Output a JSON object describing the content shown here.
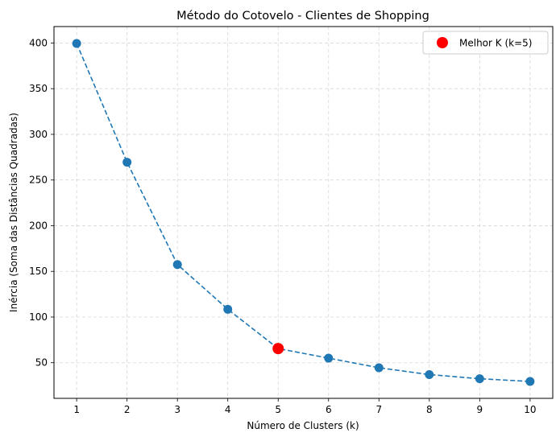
{
  "chart_data": {
    "type": "line",
    "title": "Método do Cotovelo - Clientes de Shopping",
    "xlabel": "Número de Clusters (k)",
    "ylabel": "Inércia (Soma das Distâncias Quadradas)",
    "x": [
      1,
      2,
      3,
      4,
      5,
      6,
      7,
      8,
      9,
      10
    ],
    "series": [
      {
        "values": [
          399.5,
          269.5,
          157.5,
          108.5,
          65.5,
          55,
          44.5,
          37,
          32.5,
          29.5
        ],
        "color": "#1f77b4",
        "line_style": "dashed",
        "marker": "circle"
      }
    ],
    "highlight": {
      "name": "Melhor K (k=5)",
      "x": 5,
      "y": 65.5,
      "color": "#ff0000"
    },
    "xticks": [
      1,
      2,
      3,
      4,
      5,
      6,
      7,
      8,
      9,
      10
    ],
    "yticks": [
      50,
      100,
      150,
      200,
      250,
      300,
      350,
      400
    ],
    "xlim": [
      0.55,
      10.45
    ],
    "ylim": [
      11,
      418
    ],
    "grid": true,
    "legend_position": "top-right"
  }
}
